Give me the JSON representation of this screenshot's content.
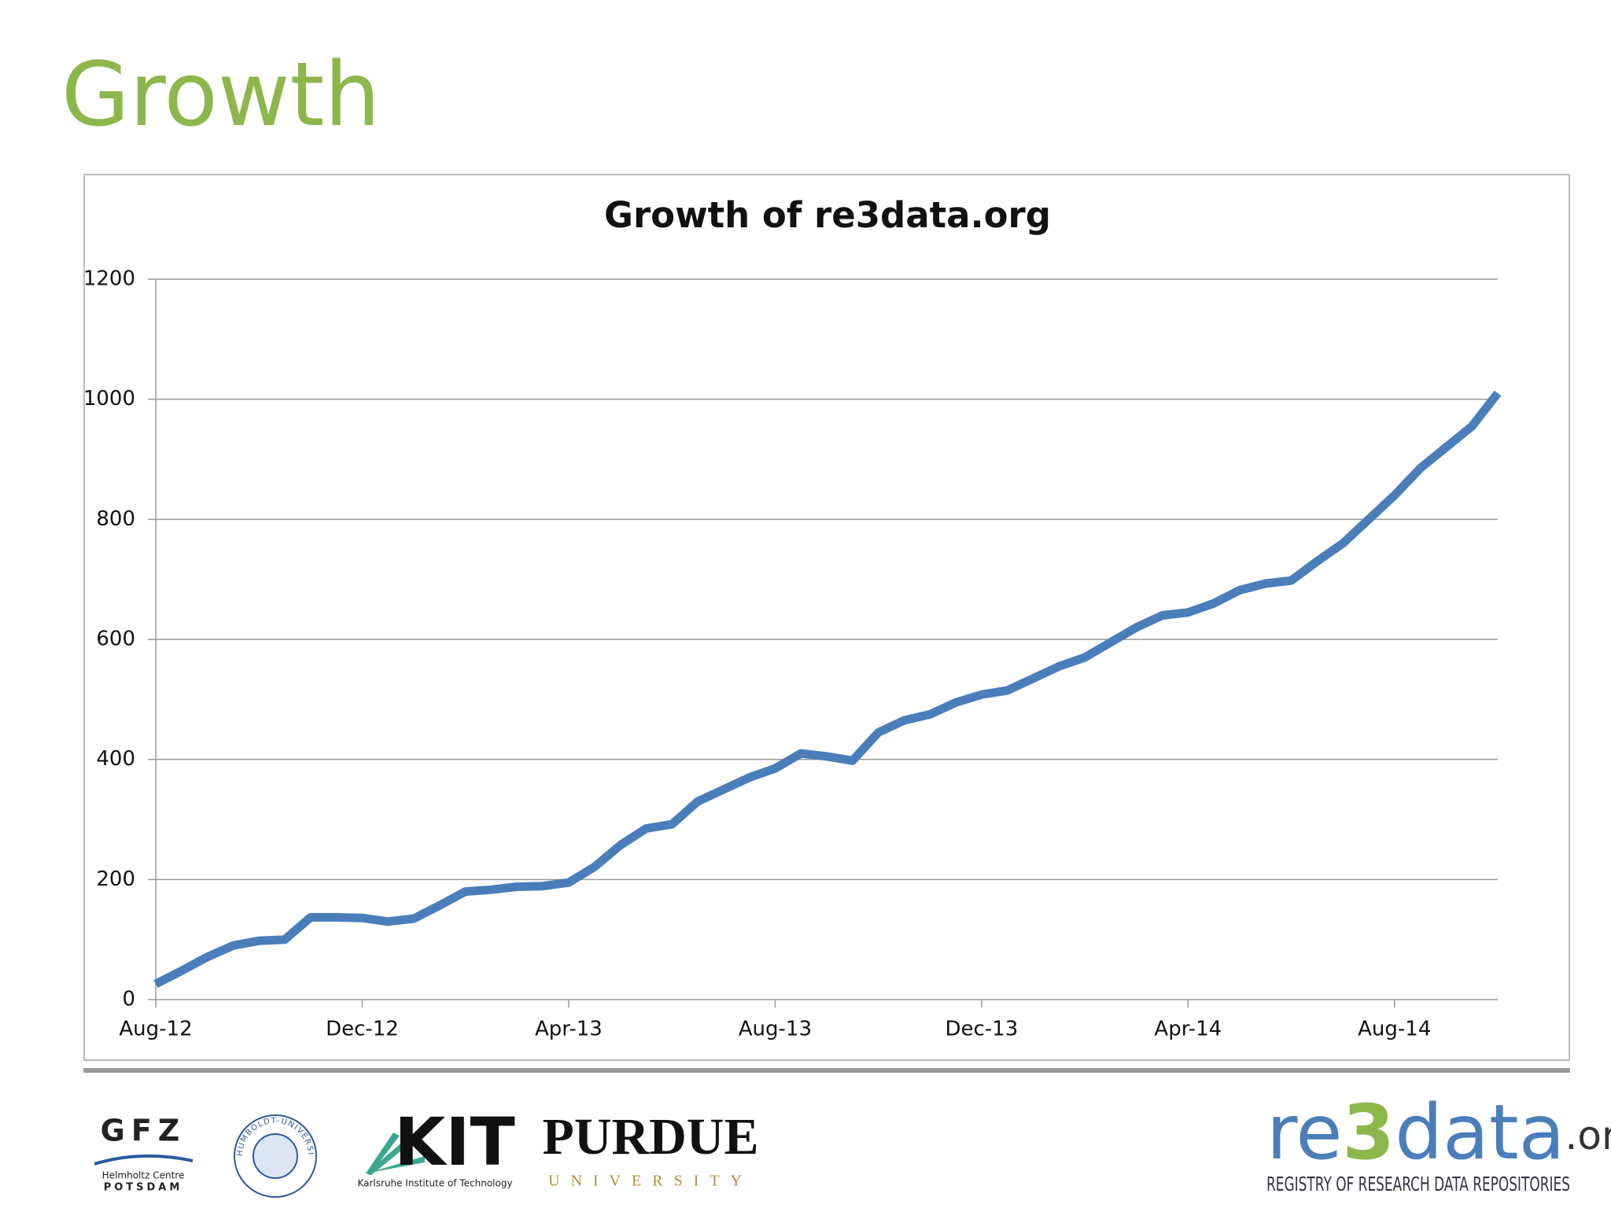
{
  "slide": {
    "title": "Growth",
    "logos": {
      "gfz": "GFZ",
      "gfz_sub1": "Helmholtz Centre",
      "gfz_sub2": "POTSDAM",
      "humboldt": "HUMBOLDT-UNIVERSITÄT ZU BERLIN",
      "kit": "KIT",
      "kit_sub": "Karlsruhe Institute of Technology",
      "purdue": "PURDUE",
      "purdue_sub": "UNIVERSITY",
      "re3_parts": [
        "re",
        "3",
        "data",
        ".org"
      ],
      "re3_sub": "REGISTRY OF RESEARCH DATA REPOSITORIES"
    }
  },
  "chart_data": {
    "type": "line",
    "title": "Growth of re3data.org",
    "categories": [
      "Aug-12",
      null,
      null,
      null,
      null,
      null,
      null,
      null,
      "Dec-12",
      null,
      null,
      null,
      null,
      null,
      null,
      null,
      "Apr-13",
      null,
      null,
      null,
      null,
      null,
      null,
      null,
      "Aug-13",
      null,
      null,
      null,
      null,
      null,
      null,
      null,
      "Dec-13",
      null,
      null,
      null,
      null,
      null,
      null,
      null,
      "Apr-14",
      null,
      null,
      null,
      null,
      null,
      null,
      null,
      "Aug-14",
      null,
      null,
      null,
      null
    ],
    "values": [
      26,
      48,
      71,
      90,
      98,
      100,
      137,
      137,
      136,
      130,
      135,
      157,
      180,
      183,
      188,
      189,
      195,
      221,
      257,
      285,
      292,
      330,
      350,
      370,
      385,
      410,
      405,
      398,
      445,
      465,
      475,
      495,
      508,
      515,
      535,
      555,
      570,
      595,
      620,
      640,
      645,
      660,
      682,
      693,
      698,
      730,
      760,
      800,
      840,
      885,
      920,
      955,
      1010
    ],
    "color": "#4a7ebb",
    "ylim": [
      0,
      1200
    ],
    "yticks": [
      0,
      200,
      400,
      600,
      800,
      1000,
      1200
    ],
    "grid": true
  }
}
